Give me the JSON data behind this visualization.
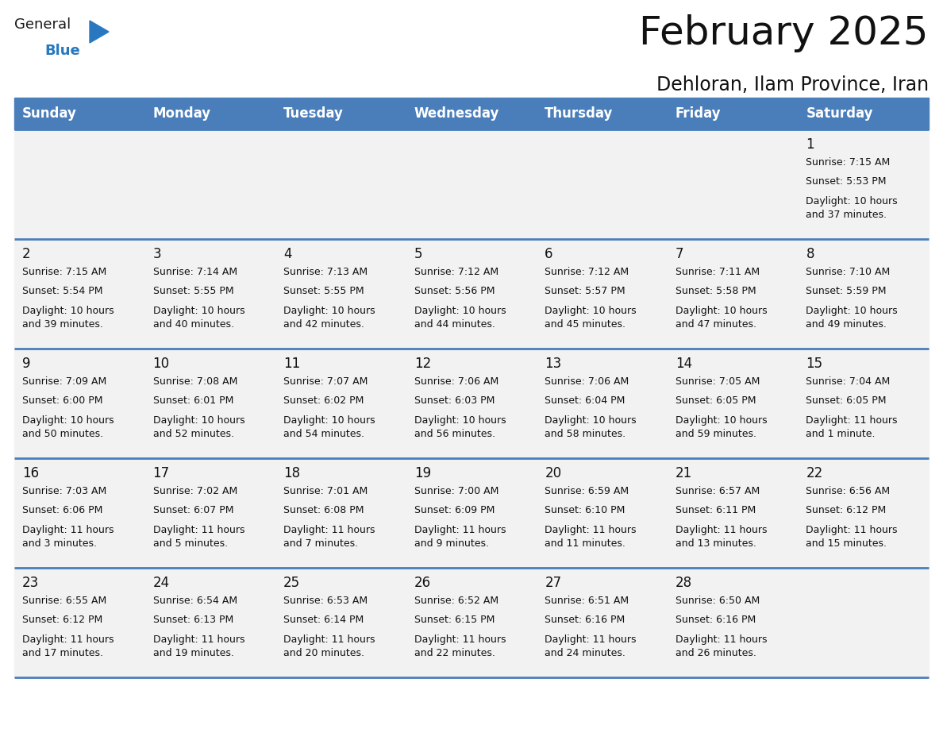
{
  "title": "February 2025",
  "subtitle": "Dehloran, Ilam Province, Iran",
  "header_bg": "#4a7ebb",
  "header_text": "#FFFFFF",
  "row_bg": "#f2f2f2",
  "separator_color": "#4a7ebb",
  "cell_border_color": "#cccccc",
  "day_names": [
    "Sunday",
    "Monday",
    "Tuesday",
    "Wednesday",
    "Thursday",
    "Friday",
    "Saturday"
  ],
  "calendar": [
    [
      null,
      null,
      null,
      null,
      null,
      null,
      {
        "day": 1,
        "sunrise": "7:15 AM",
        "sunset": "5:53 PM",
        "daylight": "10 hours\nand 37 minutes."
      }
    ],
    [
      {
        "day": 2,
        "sunrise": "7:15 AM",
        "sunset": "5:54 PM",
        "daylight": "10 hours\nand 39 minutes."
      },
      {
        "day": 3,
        "sunrise": "7:14 AM",
        "sunset": "5:55 PM",
        "daylight": "10 hours\nand 40 minutes."
      },
      {
        "day": 4,
        "sunrise": "7:13 AM",
        "sunset": "5:55 PM",
        "daylight": "10 hours\nand 42 minutes."
      },
      {
        "day": 5,
        "sunrise": "7:12 AM",
        "sunset": "5:56 PM",
        "daylight": "10 hours\nand 44 minutes."
      },
      {
        "day": 6,
        "sunrise": "7:12 AM",
        "sunset": "5:57 PM",
        "daylight": "10 hours\nand 45 minutes."
      },
      {
        "day": 7,
        "sunrise": "7:11 AM",
        "sunset": "5:58 PM",
        "daylight": "10 hours\nand 47 minutes."
      },
      {
        "day": 8,
        "sunrise": "7:10 AM",
        "sunset": "5:59 PM",
        "daylight": "10 hours\nand 49 minutes."
      }
    ],
    [
      {
        "day": 9,
        "sunrise": "7:09 AM",
        "sunset": "6:00 PM",
        "daylight": "10 hours\nand 50 minutes."
      },
      {
        "day": 10,
        "sunrise": "7:08 AM",
        "sunset": "6:01 PM",
        "daylight": "10 hours\nand 52 minutes."
      },
      {
        "day": 11,
        "sunrise": "7:07 AM",
        "sunset": "6:02 PM",
        "daylight": "10 hours\nand 54 minutes."
      },
      {
        "day": 12,
        "sunrise": "7:06 AM",
        "sunset": "6:03 PM",
        "daylight": "10 hours\nand 56 minutes."
      },
      {
        "day": 13,
        "sunrise": "7:06 AM",
        "sunset": "6:04 PM",
        "daylight": "10 hours\nand 58 minutes."
      },
      {
        "day": 14,
        "sunrise": "7:05 AM",
        "sunset": "6:05 PM",
        "daylight": "10 hours\nand 59 minutes."
      },
      {
        "day": 15,
        "sunrise": "7:04 AM",
        "sunset": "6:05 PM",
        "daylight": "11 hours\nand 1 minute."
      }
    ],
    [
      {
        "day": 16,
        "sunrise": "7:03 AM",
        "sunset": "6:06 PM",
        "daylight": "11 hours\nand 3 minutes."
      },
      {
        "day": 17,
        "sunrise": "7:02 AM",
        "sunset": "6:07 PM",
        "daylight": "11 hours\nand 5 minutes."
      },
      {
        "day": 18,
        "sunrise": "7:01 AM",
        "sunset": "6:08 PM",
        "daylight": "11 hours\nand 7 minutes."
      },
      {
        "day": 19,
        "sunrise": "7:00 AM",
        "sunset": "6:09 PM",
        "daylight": "11 hours\nand 9 minutes."
      },
      {
        "day": 20,
        "sunrise": "6:59 AM",
        "sunset": "6:10 PM",
        "daylight": "11 hours\nand 11 minutes."
      },
      {
        "day": 21,
        "sunrise": "6:57 AM",
        "sunset": "6:11 PM",
        "daylight": "11 hours\nand 13 minutes."
      },
      {
        "day": 22,
        "sunrise": "6:56 AM",
        "sunset": "6:12 PM",
        "daylight": "11 hours\nand 15 minutes."
      }
    ],
    [
      {
        "day": 23,
        "sunrise": "6:55 AM",
        "sunset": "6:12 PM",
        "daylight": "11 hours\nand 17 minutes."
      },
      {
        "day": 24,
        "sunrise": "6:54 AM",
        "sunset": "6:13 PM",
        "daylight": "11 hours\nand 19 minutes."
      },
      {
        "day": 25,
        "sunrise": "6:53 AM",
        "sunset": "6:14 PM",
        "daylight": "11 hours\nand 20 minutes."
      },
      {
        "day": 26,
        "sunrise": "6:52 AM",
        "sunset": "6:15 PM",
        "daylight": "11 hours\nand 22 minutes."
      },
      {
        "day": 27,
        "sunrise": "6:51 AM",
        "sunset": "6:16 PM",
        "daylight": "11 hours\nand 24 minutes."
      },
      {
        "day": 28,
        "sunrise": "6:50 AM",
        "sunset": "6:16 PM",
        "daylight": "11 hours\nand 26 minutes."
      },
      null
    ]
  ],
  "logo_color_general": "#1a1a1a",
  "logo_color_blue": "#2878C0",
  "logo_triangle_color": "#2878C0",
  "title_fontsize": 36,
  "subtitle_fontsize": 17,
  "header_fontsize": 12,
  "day_num_fontsize": 12,
  "cell_fontsize": 9
}
